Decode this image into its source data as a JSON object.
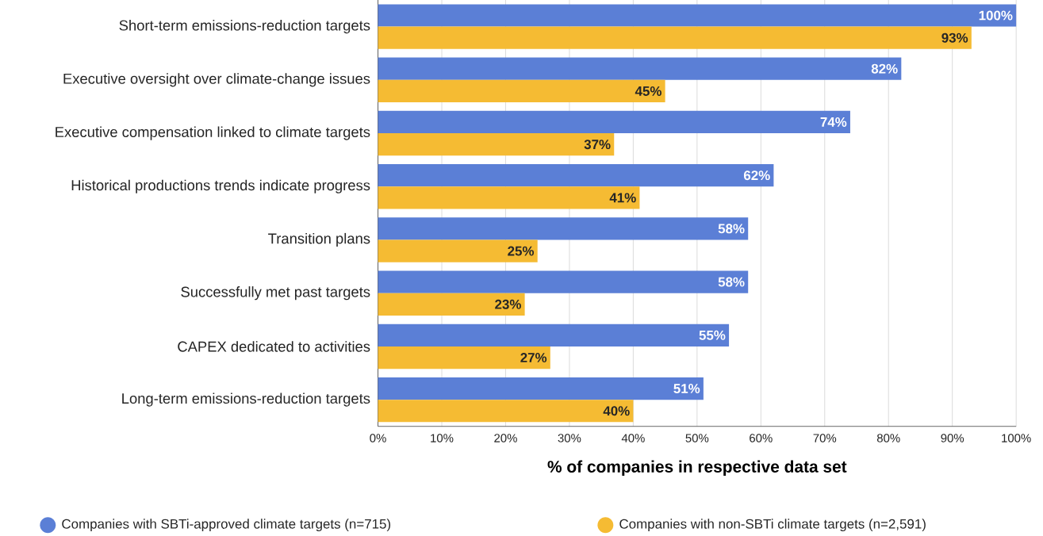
{
  "chart_data": {
    "type": "bar",
    "orientation": "horizontal",
    "categories": [
      "Short-term emissions-reduction targets",
      "Executive oversight over climate-change issues",
      "Executive compensation linked to climate targets",
      "Historical productions trends indicate progress",
      "Transition plans",
      "Successfully met past targets",
      "CAPEX dedicated to activities",
      "Long-term emissions-reduction targets"
    ],
    "series": [
      {
        "name": "Companies with SBTi-approved climate targets (n=715)",
        "color": "#5b7fd6",
        "values": [
          100,
          82,
          74,
          62,
          58,
          58,
          55,
          51
        ],
        "value_labels": [
          "100%",
          "82%",
          "74%",
          "62%",
          "58%",
          "58%",
          "55%",
          "51%"
        ]
      },
      {
        "name": "Companies with non-SBTi climate targets (n=2,591)",
        "color": "#f5bb33",
        "values": [
          93,
          45,
          37,
          41,
          25,
          23,
          27,
          40
        ],
        "value_labels": [
          "93%",
          "45%",
          "37%",
          "41%",
          "25%",
          "23%",
          "27%",
          "40%"
        ]
      }
    ],
    "xlim": [
      0,
      100
    ],
    "xticks": [
      {
        "value": 0,
        "label": "0%"
      },
      {
        "value": 10,
        "label": "10%"
      },
      {
        "value": 20,
        "label": "20%"
      },
      {
        "value": 30,
        "label": "30%"
      },
      {
        "value": 40,
        "label": "40%"
      },
      {
        "value": 50,
        "label": "50%"
      },
      {
        "value": 60,
        "label": "60%"
      },
      {
        "value": 70,
        "label": "70%"
      },
      {
        "value": 80,
        "label": "80%"
      },
      {
        "value": 90,
        "label": "90%"
      },
      {
        "value": 100,
        "label": "100%"
      }
    ],
    "xlabel": "% of companies in respective data set",
    "grid": "x",
    "legend": "bottom"
  }
}
